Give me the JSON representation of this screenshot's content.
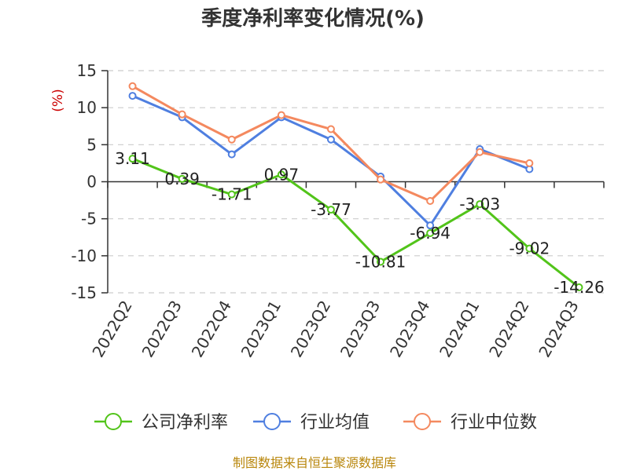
{
  "chart_data": {
    "type": "line",
    "title": "季度净利率变化情况(%)",
    "ylabel": "(%)",
    "categories": [
      "2022Q2",
      "2022Q3",
      "2022Q4",
      "2023Q1",
      "2023Q2",
      "2023Q3",
      "2023Q4",
      "2024Q1",
      "2024Q2",
      "2024Q3"
    ],
    "ylim": [
      -15,
      15
    ],
    "yticks": [
      15,
      10,
      5,
      0,
      -5,
      -10,
      -15
    ],
    "grid": true,
    "legend_position": "bottom",
    "series": [
      {
        "name": "公司净利率",
        "color": "#52c41a",
        "values": [
          3.11,
          0.39,
          -1.71,
          0.97,
          -3.77,
          -10.81,
          -6.94,
          -3.03,
          -9.02,
          -14.26
        ],
        "labels": [
          "3.11",
          "0.39",
          "-1.71",
          "0.97",
          "-3.77",
          "-10.81",
          "-6.94",
          "-3.03",
          "-9.02",
          "-14.26"
        ]
      },
      {
        "name": "行业均值",
        "color": "#4f7fe0",
        "values": [
          11.6,
          8.7,
          3.7,
          8.7,
          5.7,
          0.7,
          -5.9,
          4.4,
          1.7,
          null
        ]
      },
      {
        "name": "行业中位数",
        "color": "#f4895f",
        "values": [
          12.9,
          9.1,
          5.7,
          9.0,
          7.1,
          0.3,
          -2.6,
          4.0,
          2.5,
          null
        ]
      }
    ],
    "source": "制图数据来自恒生聚源数据库"
  }
}
